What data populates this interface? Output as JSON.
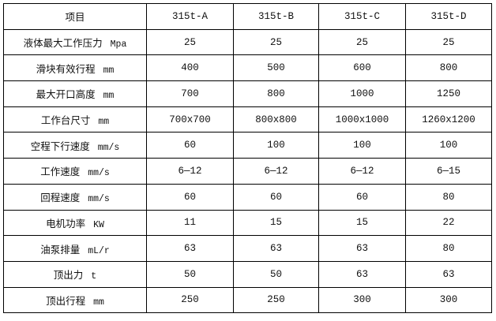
{
  "table": {
    "header": [
      "项目",
      "315t-A",
      "315t-B",
      "315t-C",
      "315t-D"
    ],
    "rows": [
      {
        "label": "液体最大工作压力",
        "unit": "Mpa",
        "values": [
          "25",
          "25",
          "25",
          "25"
        ]
      },
      {
        "label": "滑块有效行程",
        "unit": "mm",
        "values": [
          "400",
          "500",
          "600",
          "800"
        ]
      },
      {
        "label": "最大开口高度",
        "unit": "mm",
        "values": [
          "700",
          "800",
          "1000",
          "1250"
        ]
      },
      {
        "label": "工作台尺寸",
        "unit": "mm",
        "values": [
          "700x700",
          "800x800",
          "1000x1000",
          "1260x1200"
        ]
      },
      {
        "label": "空程下行速度",
        "unit": "mm/s",
        "values": [
          "60",
          "100",
          "100",
          "100"
        ]
      },
      {
        "label": "工作速度",
        "unit": "mm/s",
        "values": [
          "6—12",
          "6—12",
          "6—12",
          "6—15"
        ]
      },
      {
        "label": "回程速度",
        "unit": "mm/s",
        "values": [
          "60",
          "60",
          "60",
          "80"
        ]
      },
      {
        "label": "电机功率",
        "unit": "KW",
        "values": [
          "11",
          "15",
          "15",
          "22"
        ]
      },
      {
        "label": "油泵排量",
        "unit": "mL/r",
        "values": [
          "63",
          "63",
          "63",
          "80"
        ]
      },
      {
        "label": "顶出力",
        "unit": "t",
        "values": [
          "50",
          "50",
          "63",
          "63"
        ]
      },
      {
        "label": "顶出行程",
        "unit": "mm",
        "values": [
          "250",
          "250",
          "300",
          "300"
        ]
      }
    ]
  }
}
